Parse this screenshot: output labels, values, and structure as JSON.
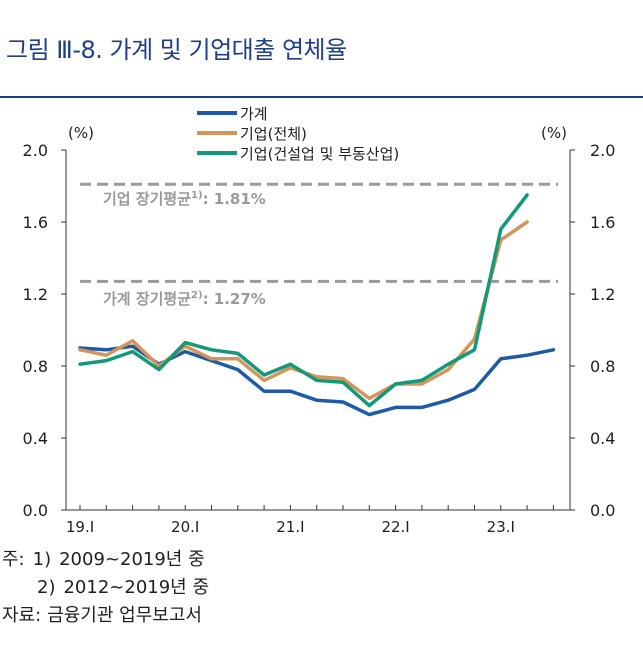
{
  "figure": {
    "title": "그림 Ⅲ-8. 가계 및 기업대출 연체율"
  },
  "colors": {
    "title": "#1d3f8c",
    "household": "#1f5aa6",
    "corporate_total": "#d4955a",
    "corporate_cre": "#13997a",
    "reference": "#9a9a9a"
  },
  "chart_data": {
    "type": "line",
    "title": "가계 및 기업대출 연체율",
    "ylabel_left": "(%)",
    "ylabel_right": "(%)",
    "ylim": [
      0,
      2.0
    ],
    "y_ticks": [
      "0.0",
      "0.4",
      "0.8",
      "1.2",
      "1.6",
      "2.0"
    ],
    "x_ticks": [
      "19.I",
      "20.I",
      "21.I",
      "22.I",
      "23.I"
    ],
    "x": [
      "19Q1",
      "19Q2",
      "19Q3",
      "19Q4",
      "20Q1",
      "20Q2",
      "20Q3",
      "20Q4",
      "21Q1",
      "21Q2",
      "21Q3",
      "21Q4",
      "22Q1",
      "22Q2",
      "22Q3",
      "22Q4",
      "23Q1",
      "23Q2",
      "23Q3"
    ],
    "series": [
      {
        "name": "가계",
        "key": "household",
        "values": [
          0.9,
          0.89,
          0.91,
          0.81,
          0.88,
          0.83,
          0.78,
          0.66,
          0.66,
          0.61,
          0.6,
          0.53,
          0.57,
          0.57,
          0.61,
          0.67,
          0.84,
          0.86,
          0.89
        ]
      },
      {
        "name": "기업(전체)",
        "key": "corporate_total",
        "values": [
          0.89,
          0.86,
          0.94,
          0.8,
          0.91,
          0.84,
          0.84,
          0.72,
          0.79,
          0.74,
          0.73,
          0.62,
          0.7,
          0.7,
          0.78,
          0.95,
          1.5,
          1.6,
          null
        ]
      },
      {
        "name": "기업(건설업 및 부동산업)",
        "key": "corporate_cre",
        "values": [
          0.81,
          0.83,
          0.88,
          0.78,
          0.93,
          0.89,
          0.87,
          0.75,
          0.81,
          0.72,
          0.71,
          0.58,
          0.7,
          0.72,
          0.81,
          0.89,
          1.56,
          1.75,
          null
        ]
      }
    ],
    "reference_lines": [
      {
        "label": "기업 장기평균",
        "sup": "1)",
        "value_text": ": 1.81%",
        "value": 1.81
      },
      {
        "label": "가계 장기평균",
        "sup": "2)",
        "value_text": ": 1.27%",
        "value": 1.27
      }
    ],
    "legend": [
      "가계",
      "기업(전체)",
      "기업(건설업 및 부동산업)"
    ]
  },
  "notes": {
    "note_label": "주:",
    "note1_num": "1)",
    "note1_text": "2009~2019년 중",
    "note2_num": "2)",
    "note2_text": "2012~2019년 중",
    "source_label": "자료:",
    "source_text": "금융기관 업무보고서"
  }
}
